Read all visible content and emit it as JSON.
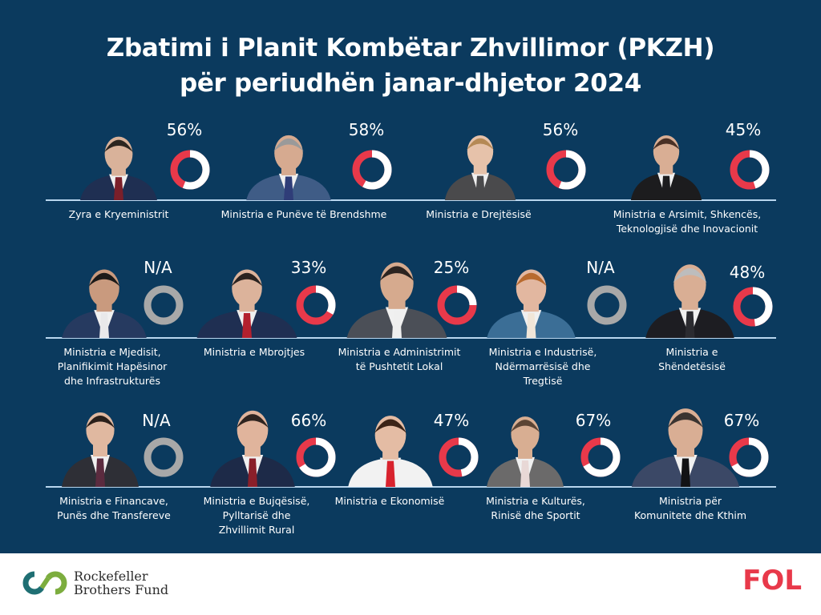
{
  "title": {
    "line1": "Zbatimi i Planit Kombëtar Zhvillimor (PKZH)",
    "line2": "për periudhën janar-dhjetor 2024"
  },
  "colors": {
    "background": "#0b3a5e",
    "done": "#ffffff",
    "remaining": "#e8394a",
    "na": "#a8a8a8",
    "rule": "#b9d6ee"
  },
  "chart_data": {
    "type": "pie",
    "title": "Zbatimi i Planit Kombëtar Zhvillimor (PKZH) për periudhën janar-dhjetor 2024",
    "series": [
      {
        "name": "Zyra e Kryeministrit",
        "value": 56,
        "label": "56%"
      },
      {
        "name": "Ministria e Punëve të Brendshme",
        "value": 58,
        "label": "58%"
      },
      {
        "name": "Ministria e Drejtësisë",
        "value": 56,
        "label": "56%"
      },
      {
        "name": "Ministria e Arsimit, Shkencës, Teknologjisë dhe Inovacionit",
        "value": 45,
        "label": "45%"
      },
      {
        "name": "Ministria e Mjedisit, Planifikimit Hapësinor dhe Infrastrukturës",
        "value": null,
        "label": "N/A"
      },
      {
        "name": "Ministria e Mbrojtjes",
        "value": 33,
        "label": "33%"
      },
      {
        "name": "Ministria e Administrimit të Pushtetit Lokal",
        "value": 25,
        "label": "25%"
      },
      {
        "name": "Ministria e Industrisë, Ndërmarrësisë dhe Tregtisë",
        "value": null,
        "label": "N/A"
      },
      {
        "name": "Ministria e Shëndetësisë",
        "value": 48,
        "label": "48%"
      },
      {
        "name": "Ministria e Financave, Punës dhe Transfereve",
        "value": null,
        "label": "N/A"
      },
      {
        "name": "Ministria e Bujqësisë, Pylltarisë dhe Zhvillimit Rural",
        "value": 66,
        "label": "66%"
      },
      {
        "name": "Ministria  e Ekonomisë",
        "value": 47,
        "label": "47%"
      },
      {
        "name": "Ministria e Kulturës, Rinisë dhe Sportit",
        "value": 67,
        "label": "67%"
      },
      {
        "name": "Ministria për Komunitete dhe Kthim",
        "value": 67,
        "label": "67%"
      }
    ]
  },
  "cards": [
    {
      "pct": "56%",
      "value": 56,
      "lines": [
        "Zyra e Kryeministrit"
      ],
      "suit": "#1f2f52",
      "tie": "#7b1f2a",
      "skin": "#d9b29a",
      "hair": "#2b2520"
    },
    {
      "pct": "58%",
      "value": 58,
      "lines": [
        "Ministria e Punëve të Brendshme"
      ],
      "suit": "#3f5c86",
      "tie": "#2f3d78",
      "skin": "#d6aa90",
      "hair": "#9a9a9a"
    },
    {
      "pct": "56%",
      "value": 56,
      "lines": [
        "Ministria e Drejtësisë"
      ],
      "suit": "#4a4a4c",
      "tie": "#4a4a4c",
      "skin": "#e6c2aa",
      "hair": "#b58955"
    },
    {
      "pct": "45%",
      "value": 45,
      "lines": [
        "Ministria e Arsimit, Shkencës,",
        "Teknologjisë dhe Inovacionit"
      ],
      "suit": "#1c1c1e",
      "tie": "#1c1c1e",
      "skin": "#d9ae94",
      "hair": "#4a3126"
    },
    {
      "pct": "N/A",
      "value": null,
      "lines": [
        "Ministria e Mjedisit,",
        "Planifikimit Hapësinor",
        "dhe Infrastrukturës"
      ],
      "suit": "#263a60",
      "tie": "#e9e9ea",
      "skin": "#c99a7e",
      "hair": "#1c1a19"
    },
    {
      "pct": "33%",
      "value": 33,
      "lines": [
        "Ministria e Mbrojtjes"
      ],
      "suit": "#1f2f52",
      "tie": "#b3202e",
      "skin": "#dcb39b",
      "hair": "#2a2320"
    },
    {
      "pct": "25%",
      "value": 25,
      "lines": [
        "Ministria e Administrimit",
        "të Pushtetit Lokal"
      ],
      "suit": "#4b4f57",
      "tie": "#efefef",
      "skin": "#d6aa8e",
      "hair": "#2c2420"
    },
    {
      "pct": "N/A",
      "value": null,
      "lines": [
        "Ministria e Industrisë,",
        "Ndërmarrësisë dhe",
        "Tregtisë"
      ],
      "suit": "#3b6e96",
      "tie": "#f1e6d8",
      "skin": "#e2b7a0",
      "hair": "#b86a2e"
    },
    {
      "pct": "48%",
      "value": 48,
      "lines": [
        "Ministria e",
        "Shëndetësisë"
      ],
      "suit": "#1d1d22",
      "tie": "#2b2b30",
      "skin": "#d9ae94",
      "hair": "#bdbdbd"
    },
    {
      "pct": "N/A",
      "value": null,
      "lines": [
        "Ministria e Financave,",
        "Punës dhe Transfereve"
      ],
      "suit": "#2e2f36",
      "tie": "#5b2b3f",
      "skin": "#e0b8a0",
      "hair": "#2a1f1a"
    },
    {
      "pct": "66%",
      "value": 66,
      "lines": [
        "Ministria e Bujqësisë,",
        "Pylltarisë dhe",
        "Zhvillimit Rural"
      ],
      "suit": "#1d2a48",
      "tie": "#8a1f2a",
      "skin": "#e0b49c",
      "hair": "#2e2420"
    },
    {
      "pct": "47%",
      "value": 47,
      "lines": [
        "Ministria  e Ekonomisë"
      ],
      "suit": "#f2f2f2",
      "tie": "#d8232e",
      "skin": "#e4bca4",
      "hair": "#3b2418"
    },
    {
      "pct": "67%",
      "value": 67,
      "lines": [
        "Ministria e Kulturës,",
        "Rinisë dhe Sportit"
      ],
      "suit": "#6b6a6a",
      "tie": "#e8d8d6",
      "skin": "#d8ae92",
      "hair": "#5b4434"
    },
    {
      "pct": "67%",
      "value": 67,
      "lines": [
        "Ministria për",
        "Komunitete dhe Kthim"
      ],
      "suit": "#3b4866",
      "tie": "#121214",
      "skin": "#d9ae94",
      "hair": "#3a3431"
    }
  ],
  "footer": {
    "partner_line1": "Rockefeller",
    "partner_line2": "Brothers Fund",
    "brand": "FOL"
  }
}
